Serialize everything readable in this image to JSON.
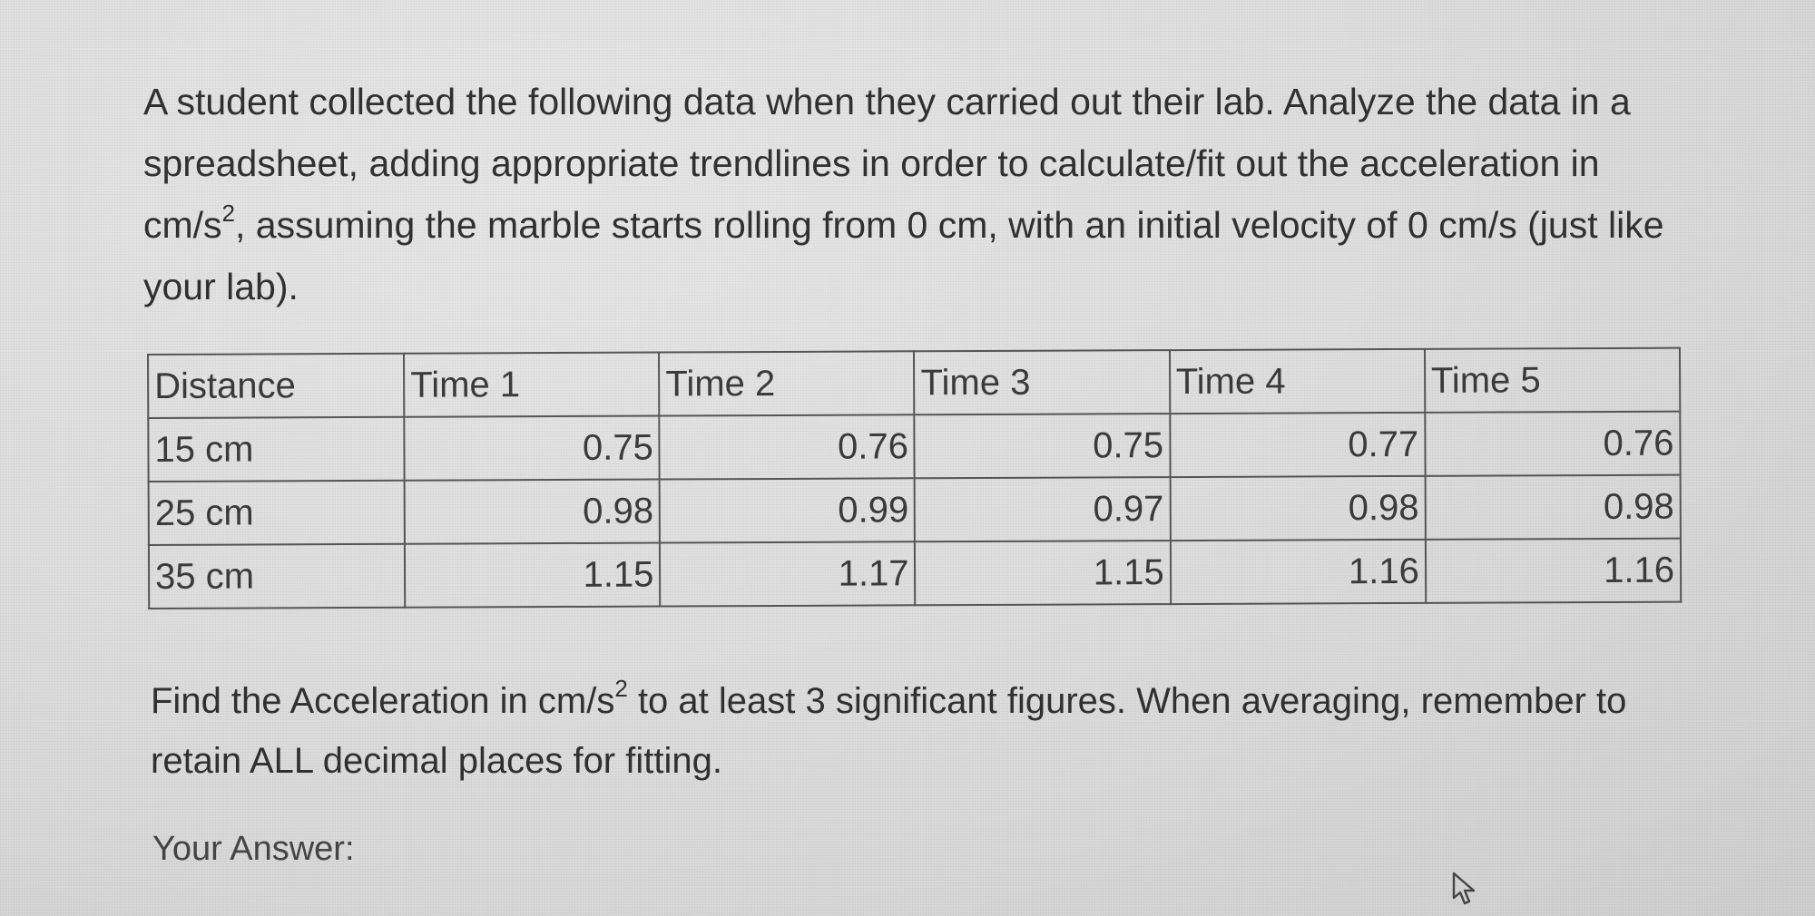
{
  "question": {
    "prefix": "A student collected the following data when they carried out their lab.  Analyze the data in a spreadsheet, adding appropriate trendlines in order to calculate/fit out the acceleration in cm/s",
    "exponent": "2",
    "suffix": ", assuming the marble starts rolling from 0 cm, with an initial velocity of 0 cm/s (just like your lab)."
  },
  "table": {
    "headers": [
      "Distance",
      "Time 1",
      "Time 2",
      "Time 3",
      "Time 4",
      "Time 5"
    ],
    "rows": [
      [
        "15 cm",
        "0.75",
        "0.76",
        "0.75",
        "0.77",
        "0.76"
      ],
      [
        "25 cm",
        "0.98",
        "0.99",
        "0.97",
        "0.98",
        "0.98"
      ],
      [
        "35 cm",
        "1.15",
        "1.17",
        "1.15",
        "1.16",
        "1.16"
      ]
    ]
  },
  "instruction": {
    "prefix": "Find the Acceleration in cm/s",
    "exponent": "2",
    "suffix": " to at least 3 significant figures.  When averaging, remember to retain ALL decimal places for fitting."
  },
  "answer": {
    "label": "Your Answer:"
  },
  "icons": {
    "cursor": "mouse-pointer-icon"
  }
}
